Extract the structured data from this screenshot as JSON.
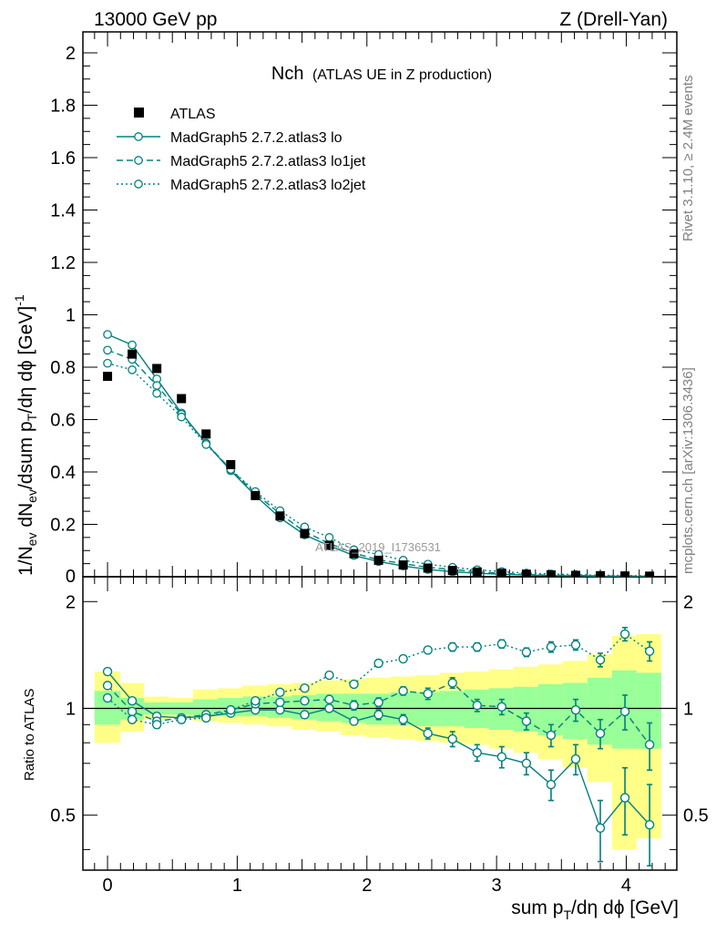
{
  "header": {
    "left": "13000 GeV pp",
    "right": "Z (Drell-Yan)"
  },
  "side_labels": {
    "rivet": "Rivet 3.1.10, ≥ 2.4M events",
    "mcplots": "mcplots.cern.ch [arXiv:1306.3436]"
  },
  "main_panel": {
    "title_main": "Nch",
    "title_sub": "(ATLAS UE in Z production)",
    "watermark": "ATLAS_2019_I1736531",
    "ylabel": "1/N_ev dN_ev/dsum p_T/dη dϕ [GeV]^-1"
  },
  "ratio_panel": {
    "ylabel": "Ratio to ATLAS"
  },
  "xaxis_label": "sum p_T/dη dϕ [GeV]",
  "chart_data": [
    {
      "type": "line",
      "panel": "main",
      "title": "Nch (ATLAS UE in Z production)",
      "xlabel": "sum p_T/dη dϕ [GeV]",
      "ylabel": "1/N_ev dN_ev/dsum p_T/dη dϕ [GeV]^-1",
      "xlim": [
        -0.19,
        4.39
      ],
      "ylim": [
        0,
        2.08
      ],
      "xticks": [
        0,
        1,
        2,
        3,
        4
      ],
      "yticks": [
        0.2,
        0.4,
        0.6,
        0.8,
        1,
        1.2,
        1.4,
        1.6,
        1.8,
        2
      ],
      "ytick_labels": [
        "0.2",
        "0.4",
        "0.6",
        "0.8",
        "1",
        "1.2",
        "1.4",
        "1.6",
        "1.8",
        "2"
      ],
      "x": [
        0,
        0.19,
        0.38,
        0.57,
        0.76,
        0.95,
        1.14,
        1.33,
        1.52,
        1.71,
        1.9,
        2.09,
        2.28,
        2.47,
        2.66,
        2.85,
        3.04,
        3.23,
        3.42,
        3.61,
        3.8,
        3.99,
        4.18
      ],
      "legend_position": "top-left",
      "series": [
        {
          "name": "ATLAS",
          "style": "data",
          "color": "#000000",
          "values": [
            0.765,
            0.85,
            0.795,
            0.68,
            0.545,
            0.428,
            0.31,
            0.232,
            0.165,
            0.12,
            0.088,
            0.063,
            0.045,
            0.033,
            0.024,
            0.018,
            0.013,
            0.0095,
            0.007,
            0.0053,
            0.004,
            0.003,
            0.0023
          ]
        },
        {
          "name": "MadGraph5 2.7.2.atlas3 lo",
          "style": "solid",
          "color": "#008080",
          "values": [
            0.925,
            0.885,
            0.755,
            0.625,
            0.51,
            0.405,
            0.31,
            0.225,
            0.16,
            0.118,
            0.081,
            0.058,
            0.041,
            0.028,
            0.019,
            0.0135,
            0.0095,
            0.0066,
            0.0043,
            0.0038,
            0.0018,
            0.0017,
            0.0011
          ]
        },
        {
          "name": "MadGraph5 2.7.2.atlas3 lo1jet",
          "style": "dashed",
          "color": "#008080",
          "values": [
            0.865,
            0.83,
            0.73,
            0.62,
            0.51,
            0.41,
            0.318,
            0.24,
            0.172,
            0.127,
            0.09,
            0.065,
            0.05,
            0.036,
            0.028,
            0.0185,
            0.0132,
            0.0087,
            0.0059,
            0.0053,
            0.0034,
            0.003,
            0.0018
          ]
        },
        {
          "name": "MadGraph5 2.7.2.atlas3 lo2jet",
          "style": "dotted",
          "color": "#008080",
          "values": [
            0.815,
            0.79,
            0.7,
            0.61,
            0.505,
            0.41,
            0.325,
            0.252,
            0.19,
            0.15,
            0.103,
            0.085,
            0.063,
            0.048,
            0.036,
            0.0268,
            0.0198,
            0.0138,
            0.0105,
            0.0081,
            0.0055,
            0.0049,
            0.0033
          ]
        }
      ]
    },
    {
      "type": "line",
      "panel": "ratio",
      "xlabel": "sum p_T/dη dϕ [GeV]",
      "ylabel": "Ratio to ATLAS",
      "xlim": [
        -0.19,
        4.39
      ],
      "ylim": [
        0.35,
        2.35
      ],
      "xticks": [
        0,
        1,
        2,
        3,
        4
      ],
      "xtick_labels": [
        "0",
        "1",
        "2",
        "3",
        "4"
      ],
      "yticks": [
        0.5,
        1,
        2
      ],
      "ytick_labels": [
        "0.5",
        "1",
        "2"
      ],
      "x": [
        0,
        0.19,
        0.38,
        0.57,
        0.76,
        0.95,
        1.14,
        1.33,
        1.52,
        1.71,
        1.9,
        2.09,
        2.28,
        2.47,
        2.66,
        2.85,
        3.04,
        3.23,
        3.42,
        3.61,
        3.8,
        3.99,
        4.18
      ],
      "band_edges": [
        -0.1,
        0.1,
        0.28,
        0.47,
        0.66,
        0.85,
        1.04,
        1.23,
        1.42,
        1.61,
        1.8,
        1.99,
        2.18,
        2.37,
        2.56,
        2.75,
        2.94,
        3.13,
        3.32,
        3.51,
        3.7,
        3.89,
        4.08,
        4.27
      ],
      "band_inner": [
        [
          0.9,
          1.12
        ],
        [
          0.93,
          1.07
        ],
        [
          0.96,
          1.04
        ],
        [
          0.96,
          1.04
        ],
        [
          0.95,
          1.06
        ],
        [
          0.95,
          1.07
        ],
        [
          0.95,
          1.08
        ],
        [
          0.94,
          1.08
        ],
        [
          0.93,
          1.09
        ],
        [
          0.92,
          1.1
        ],
        [
          0.91,
          1.1
        ],
        [
          0.9,
          1.1
        ],
        [
          0.9,
          1.11
        ],
        [
          0.89,
          1.11
        ],
        [
          0.89,
          1.12
        ],
        [
          0.88,
          1.13
        ],
        [
          0.87,
          1.14
        ],
        [
          0.86,
          1.15
        ],
        [
          0.84,
          1.17
        ],
        [
          0.82,
          1.18
        ],
        [
          0.79,
          1.22
        ],
        [
          0.77,
          1.28
        ],
        [
          0.77,
          1.26
        ]
      ],
      "band_outer": [
        [
          0.8,
          1.27
        ],
        [
          0.86,
          1.18
        ],
        [
          0.93,
          1.08
        ],
        [
          0.94,
          1.07
        ],
        [
          0.92,
          1.13
        ],
        [
          0.91,
          1.14
        ],
        [
          0.9,
          1.16
        ],
        [
          0.89,
          1.17
        ],
        [
          0.87,
          1.18
        ],
        [
          0.86,
          1.2
        ],
        [
          0.84,
          1.21
        ],
        [
          0.83,
          1.22
        ],
        [
          0.82,
          1.23
        ],
        [
          0.81,
          1.24
        ],
        [
          0.8,
          1.26
        ],
        [
          0.79,
          1.27
        ],
        [
          0.77,
          1.29
        ],
        [
          0.75,
          1.31
        ],
        [
          0.72,
          1.33
        ],
        [
          0.68,
          1.36
        ],
        [
          0.62,
          1.42
        ],
        [
          0.4,
          1.6
        ],
        [
          0.43,
          1.62
        ]
      ],
      "band_colors": {
        "inner": "#99ff99",
        "outer": "#ffff88"
      },
      "series": [
        {
          "name": "MadGraph5 2.7.2.atlas3 lo",
          "style": "solid",
          "color": "#008080",
          "values": [
            1.27,
            1.05,
            0.95,
            0.94,
            0.95,
            0.97,
            0.99,
            0.99,
            0.96,
            1.0,
            0.92,
            0.96,
            0.93,
            0.85,
            0.82,
            0.75,
            0.73,
            0.7,
            0.61,
            0.72,
            0.46,
            0.56,
            0.47
          ],
          "err": [
            0.02,
            0.02,
            0.02,
            0.02,
            0.02,
            0.02,
            0.02,
            0.02,
            0.02,
            0.02,
            0.02,
            0.03,
            0.03,
            0.03,
            0.04,
            0.04,
            0.05,
            0.05,
            0.06,
            0.07,
            0.09,
            0.12,
            0.14
          ]
        },
        {
          "name": "MadGraph5 2.7.2.atlas3 lo1jet",
          "style": "dashed",
          "color": "#008080",
          "values": [
            1.16,
            0.98,
            0.92,
            0.94,
            0.96,
            0.99,
            1.03,
            1.04,
            1.05,
            1.06,
            1.02,
            1.04,
            1.12,
            1.1,
            1.18,
            1.02,
            1.01,
            0.92,
            0.84,
            0.99,
            0.85,
            0.98,
            0.79
          ],
          "err": [
            0.02,
            0.02,
            0.02,
            0.02,
            0.02,
            0.02,
            0.02,
            0.02,
            0.02,
            0.02,
            0.03,
            0.03,
            0.03,
            0.04,
            0.04,
            0.04,
            0.05,
            0.05,
            0.06,
            0.07,
            0.08,
            0.11,
            0.12
          ]
        },
        {
          "name": "MadGraph5 2.7.2.atlas3 lo2jet",
          "style": "dotted",
          "color": "#008080",
          "values": [
            1.07,
            0.93,
            0.9,
            0.93,
            0.94,
            0.99,
            1.05,
            1.11,
            1.14,
            1.24,
            1.17,
            1.34,
            1.38,
            1.46,
            1.49,
            1.49,
            1.52,
            1.44,
            1.49,
            1.51,
            1.37,
            1.62,
            1.45
          ],
          "err": [
            0.02,
            0.02,
            0.02,
            0.02,
            0.02,
            0.02,
            0.02,
            0.02,
            0.02,
            0.02,
            0.02,
            0.03,
            0.03,
            0.03,
            0.04,
            0.04,
            0.04,
            0.04,
            0.05,
            0.05,
            0.06,
            0.07,
            0.09
          ]
        }
      ]
    }
  ]
}
